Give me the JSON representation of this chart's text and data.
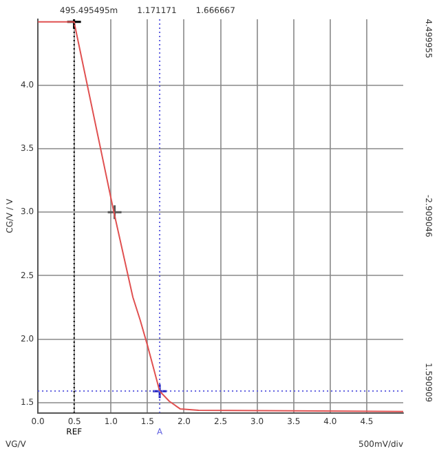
{
  "chart_data": {
    "type": "line",
    "xlabel": "VG/V",
    "ylabel": "CG/V / V",
    "xlim": [
      0,
      5
    ],
    "ylim": [
      1.42,
      4.52
    ],
    "xticks": [
      {
        "value": 0,
        "label": "0.0"
      },
      0.5,
      {
        "value": 1,
        "label": "1.0"
      },
      1.5,
      {
        "value": 2,
        "label": "2.0"
      },
      2.5,
      {
        "value": 3,
        "label": "3.0"
      },
      3.5,
      {
        "value": 4,
        "label": "4.0"
      },
      4.5
    ],
    "yticks": [
      1.5,
      {
        "value": 2,
        "label": "2.0"
      },
      2.5,
      {
        "value": 3,
        "label": "3.0"
      },
      3.5,
      {
        "value": 4,
        "label": "4.0"
      }
    ],
    "grid": true,
    "legend": false,
    "line_style": "solid",
    "series": [
      {
        "color": "#e05050",
        "marker": "none",
        "x": [
          0,
          0.495,
          1.04,
          1.3,
          1.4,
          1.5,
          1.667,
          1.8,
          1.95,
          2.2,
          5
        ],
        "values": [
          4.5,
          4.5,
          3.0,
          2.33,
          2.15,
          1.95,
          1.59,
          1.51,
          1.45,
          1.44,
          1.43
        ]
      },
      {
        "type": "scatter",
        "marker": "cross",
        "colors": [
          "#000000",
          "#555555",
          "#2020c0"
        ],
        "x": [
          0.495,
          1.05,
          1.667
        ],
        "values": [
          4.5,
          3.0,
          1.59
        ]
      }
    ],
    "ref_lines": [
      {
        "axis": "x",
        "value": 0.495495,
        "label": "REF",
        "color": "#000000",
        "line_style": "dotted"
      },
      {
        "axis": "x",
        "value": 1.666667,
        "label": "A",
        "color": "#6060e0",
        "line_style": "dotted"
      },
      {
        "axis": "y",
        "value": 1.590909,
        "color": "#6060e0",
        "line_style": "dotted"
      }
    ],
    "annotations": [
      "495.495495m",
      "1.171171",
      "1.666667",
      "4.499955",
      "-2.909046",
      "1.590909",
      "500mV/div"
    ]
  }
}
